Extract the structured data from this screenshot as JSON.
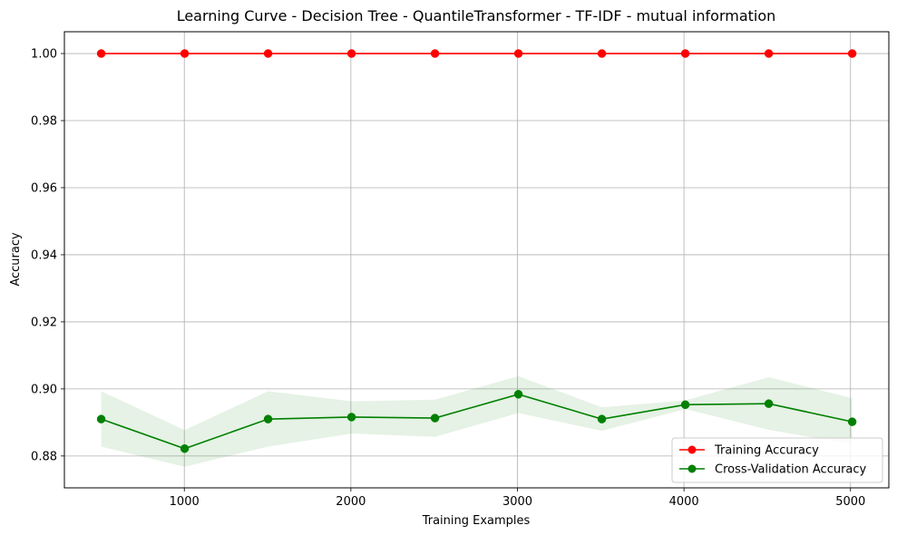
{
  "chart_data": {
    "type": "line",
    "title": "Learning Curve - Decision Tree - QuantileTransformer - TF-IDF - mutual information",
    "xlabel": "Training Examples",
    "ylabel": "Accuracy",
    "xlim": [
      280,
      5230
    ],
    "ylim": [
      0.8705,
      1.0065
    ],
    "xticks": [
      1000,
      2000,
      3000,
      4000,
      5000
    ],
    "xtick_labels": [
      "1000",
      "2000",
      "3000",
      "4000",
      "5000"
    ],
    "yticks": [
      0.88,
      0.9,
      0.92,
      0.94,
      0.96,
      0.98,
      1.0
    ],
    "ytick_labels": [
      "0.88",
      "0.90",
      "0.92",
      "0.94",
      "0.96",
      "0.98",
      "1.00"
    ],
    "grid": true,
    "legend_position": "lower right",
    "x": [
      501,
      1002,
      1503,
      2004,
      2505,
      3006,
      3507,
      4008,
      4509,
      5010
    ],
    "series": [
      {
        "name": "Training Accuracy",
        "color": "#ff0000",
        "marker": "circle",
        "values": [
          1.0,
          1.0,
          1.0,
          1.0,
          1.0,
          1.0,
          1.0,
          1.0,
          1.0,
          1.0
        ],
        "band_lower": [
          1.0,
          1.0,
          1.0,
          1.0,
          1.0,
          1.0,
          1.0,
          1.0,
          1.0,
          1.0
        ],
        "band_upper": [
          1.0,
          1.0,
          1.0,
          1.0,
          1.0,
          1.0,
          1.0,
          1.0,
          1.0,
          1.0
        ],
        "band_color": "#ff0000"
      },
      {
        "name": "Cross-Validation Accuracy",
        "color": "#008000",
        "marker": "circle",
        "values": [
          0.891,
          0.8822,
          0.891,
          0.8916,
          0.8913,
          0.8984,
          0.891,
          0.8953,
          0.8956,
          0.8902
        ],
        "band_lower": [
          0.8828,
          0.8768,
          0.8828,
          0.8867,
          0.8857,
          0.8928,
          0.8875,
          0.894,
          0.8878,
          0.8835
        ],
        "band_upper": [
          0.8993,
          0.8877,
          0.8993,
          0.8963,
          0.8968,
          0.9038,
          0.8945,
          0.8966,
          0.9035,
          0.8972
        ],
        "band_color": "#008000"
      }
    ]
  }
}
